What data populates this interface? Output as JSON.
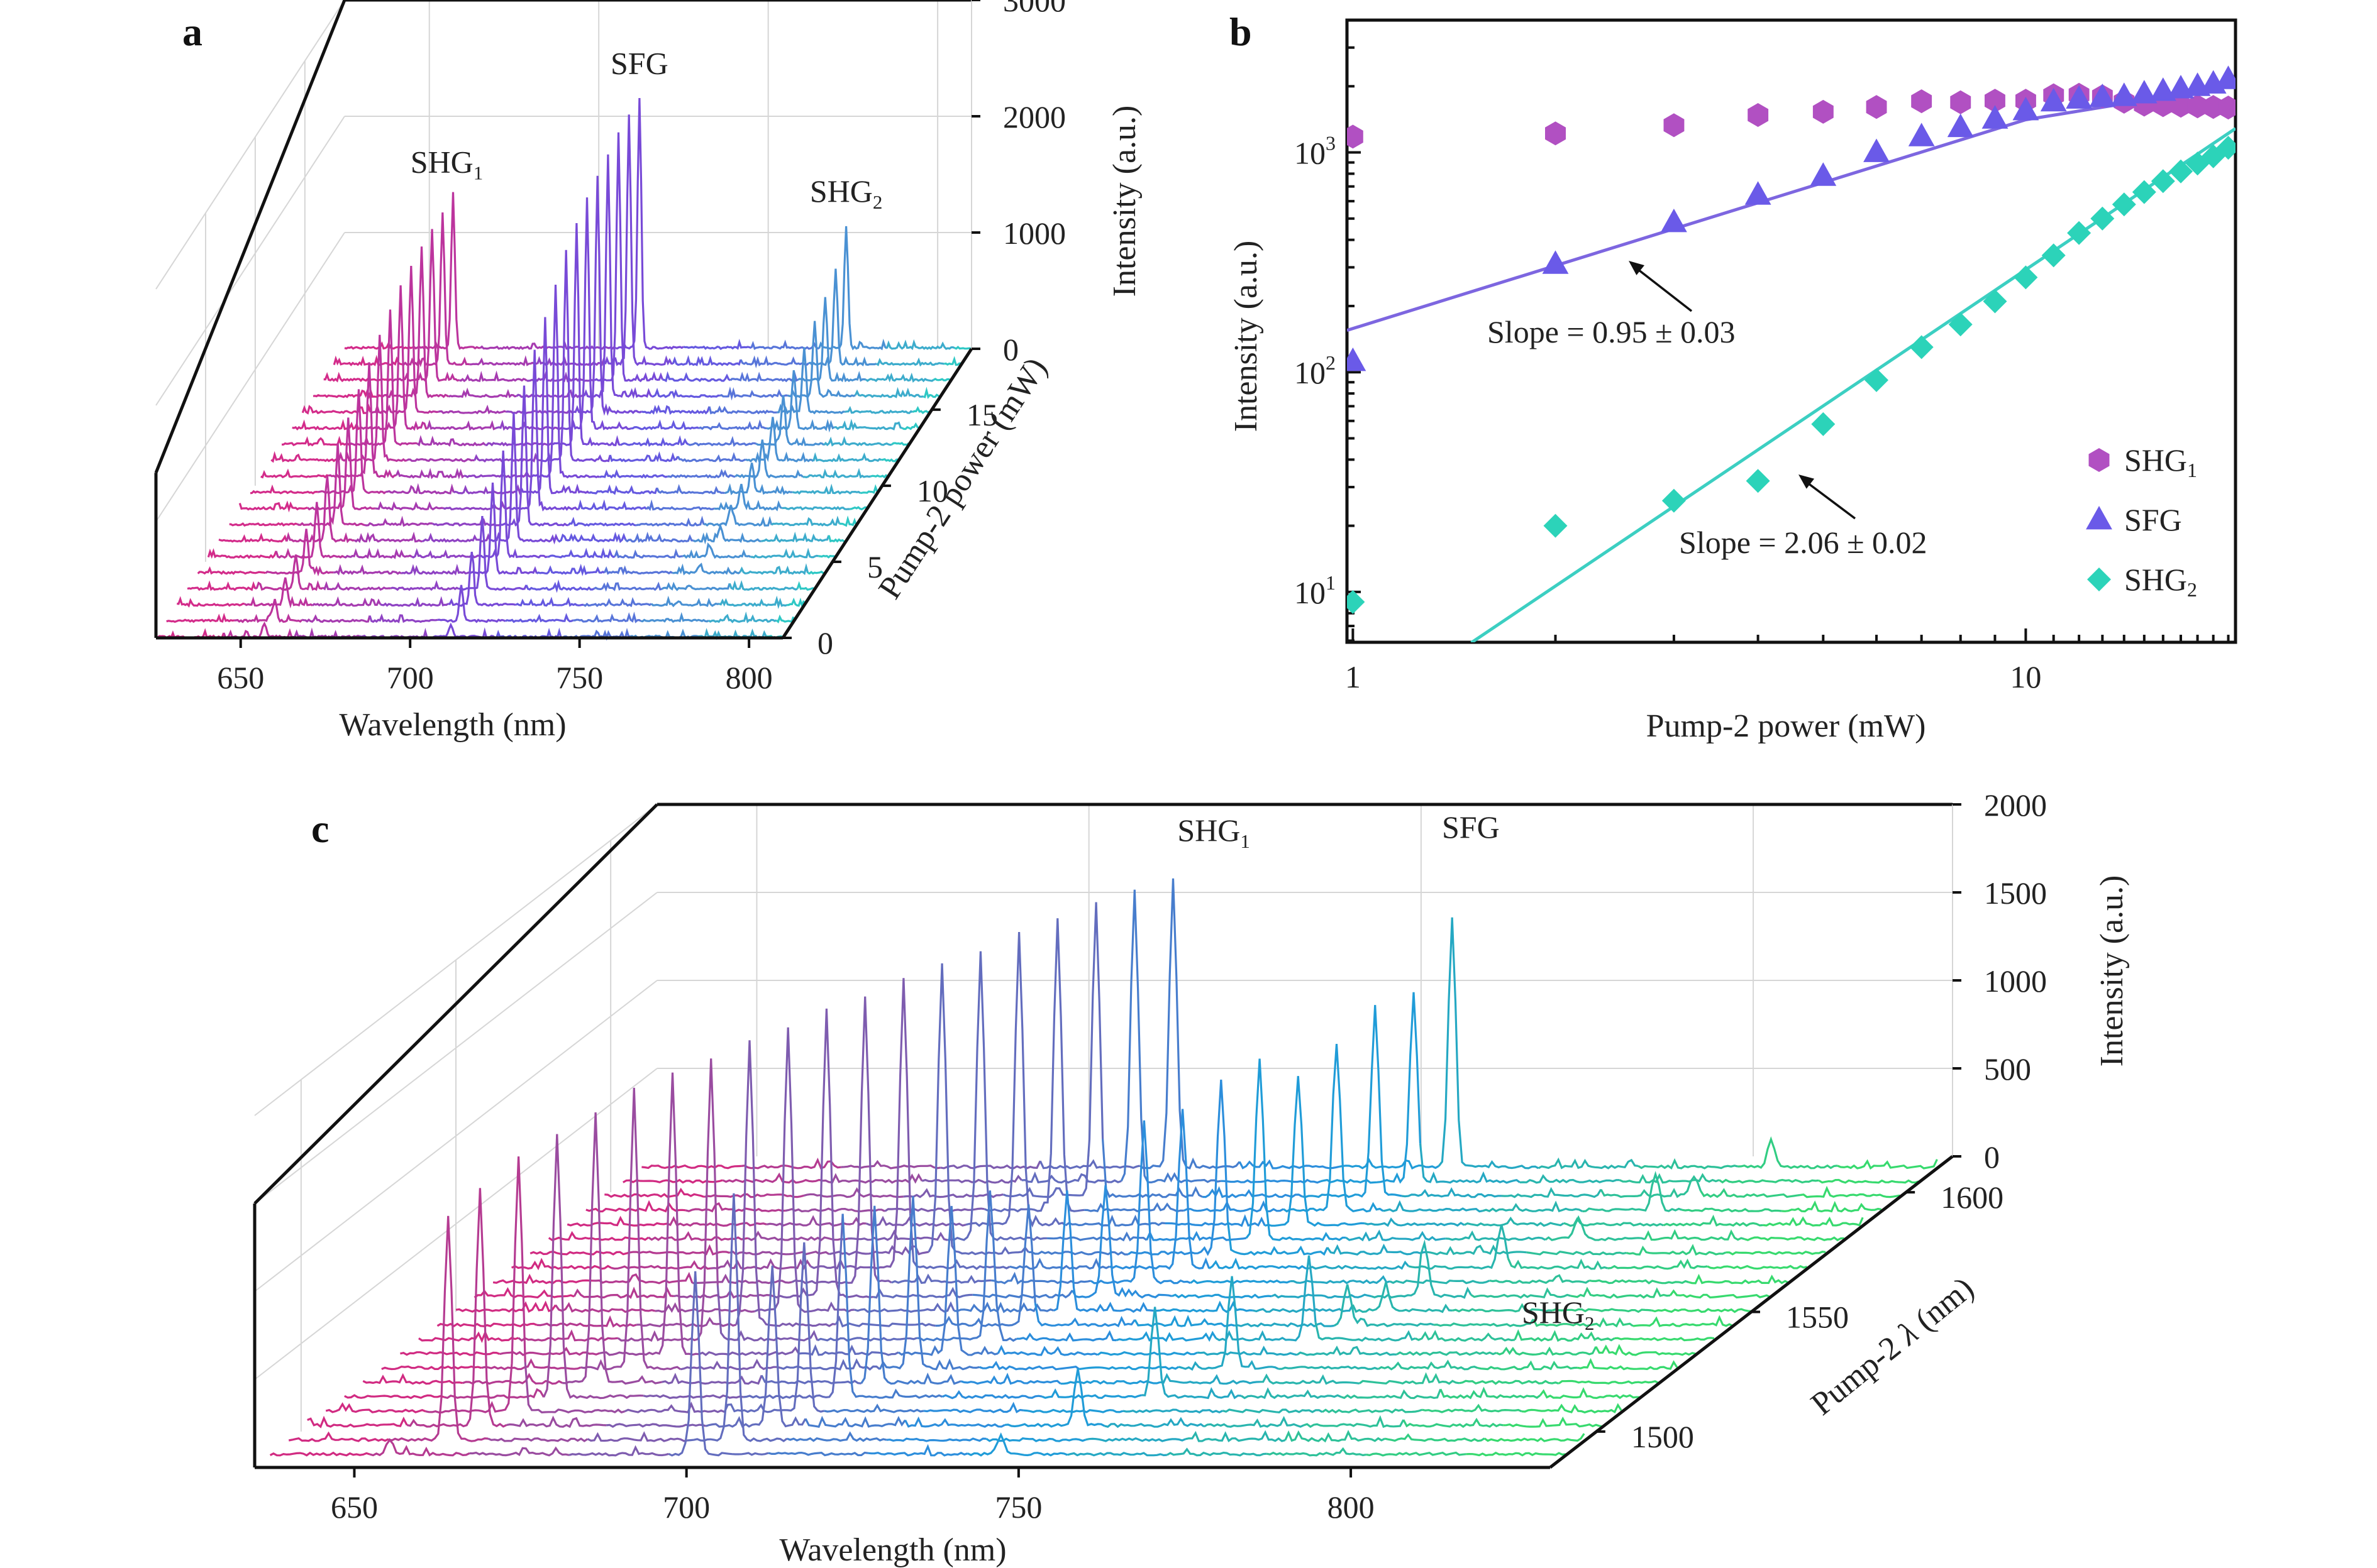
{
  "colors": {
    "a_SHG1": "#d32c8a",
    "a_SFG": "#6a4fe3",
    "a_SHG2": "#2ccfc3",
    "b_SHG1": "#b150c2",
    "b_SFG": "#6a5ae8",
    "b_SHG2": "#2cd3b9",
    "b_fit_SFG": "#7d66e0",
    "b_fit_SHG2": "#3ccfc2",
    "c_SHG1": "#d12b82",
    "c_SFG": "#1e96e3",
    "c_SHG2": "#3be659",
    "axis": "#111111",
    "grid": "#d6d6d6"
  },
  "chart_data": [
    {
      "panel": "a",
      "type": "line",
      "chart_kind": "3D waterfall spectra",
      "xlabel": "Wavelength (nm)",
      "xticks": [
        "650",
        "700",
        "750",
        "800"
      ],
      "xlim": [
        625,
        810
      ],
      "ylabel": "Pump-2 power (mW)",
      "yticks": [
        "0",
        "5",
        "10",
        "15"
      ],
      "ylim": [
        0,
        19
      ],
      "zlabel": "Intensity (a.u.)",
      "zticks": [
        "0",
        "1000",
        "2000",
        "3000"
      ],
      "zlim": [
        0,
        3000
      ],
      "peaks": [
        {
          "name": "SHG1",
          "label": "SHG",
          "sub": "1",
          "wavelength": 657,
          "amplitudes": [
            120,
            180,
            240,
            300,
            380,
            460,
            560,
            660,
            780,
            880,
            980,
            1080,
            1160,
            1220,
            1260,
            1280,
            1290,
            1300,
            1300
          ]
        },
        {
          "name": "SFG",
          "label": "SFG",
          "wavelength": 712,
          "amplitudes": [
            110,
            300,
            460,
            620,
            780,
            920,
            1060,
            1200,
            1360,
            1500,
            1650,
            1800,
            1900,
            1980,
            2040,
            2080,
            2120,
            2140,
            2150
          ]
        },
        {
          "name": "SHG2",
          "label": "SHG",
          "sub": "2",
          "wavelength": 773,
          "amplitudes": [
            9,
            15,
            22,
            28,
            58,
            90,
            130,
            170,
            210,
            260,
            310,
            370,
            430,
            500,
            560,
            640,
            720,
            820,
            1050
          ]
        }
      ]
    },
    {
      "panel": "b",
      "type": "scatter",
      "scale": "log-log",
      "xlabel": "Pump-2 power (mW)",
      "ylabel": "Intensity (a.u.)",
      "xlim": [
        0.98,
        20.5
      ],
      "ylim": [
        5.9,
        4000
      ],
      "xticks": [
        "1",
        "10"
      ],
      "yticks": [
        {
          "base": "10",
          "exp": "1"
        },
        {
          "base": "10",
          "exp": "2"
        },
        {
          "base": "10",
          "exp": "3"
        }
      ],
      "legend_position": "bottom-right",
      "series": [
        {
          "name": "SHG1",
          "label": "SHG",
          "sub": "1",
          "marker": "hexagon",
          "x": [
            1,
            2,
            3,
            4,
            5,
            6,
            7,
            8,
            9,
            10,
            11,
            12,
            13,
            14,
            15,
            16,
            17,
            18,
            19,
            20
          ],
          "y": [
            1180,
            1220,
            1330,
            1480,
            1530,
            1610,
            1710,
            1690,
            1720,
            1720,
            1820,
            1830,
            1800,
            1700,
            1650,
            1640,
            1630,
            1620,
            1610,
            1600
          ]
        },
        {
          "name": "SFG",
          "label": "SFG",
          "marker": "triangle",
          "x": [
            1,
            2,
            3,
            4,
            5,
            6,
            7,
            8,
            9,
            10,
            11,
            12,
            13,
            14,
            15,
            16,
            17,
            18,
            19,
            20
          ],
          "y": [
            112,
            310,
            480,
            640,
            780,
            1000,
            1180,
            1300,
            1420,
            1550,
            1700,
            1750,
            1780,
            1800,
            1850,
            1900,
            1950,
            2000,
            2050,
            2150
          ]
        },
        {
          "name": "SHG2",
          "label": "SHG",
          "sub": "2",
          "marker": "diamond",
          "x": [
            1,
            2,
            3,
            4,
            5,
            6,
            7,
            8,
            9,
            10,
            11,
            12,
            13,
            14,
            15,
            16,
            17,
            18,
            19,
            20
          ],
          "y": [
            9,
            20,
            26,
            32,
            58,
            92,
            130,
            165,
            210,
            270,
            340,
            430,
            500,
            580,
            660,
            740,
            820,
            890,
            960,
            1050
          ]
        }
      ],
      "fits": [
        {
          "series": "SFG",
          "label": "Slope = 0.95 ± 0.03",
          "slope": 0.95,
          "intercept_at_1": 158,
          "x_range": [
            0.98,
            10
          ]
        },
        {
          "series": "SFG_upper",
          "slope": 0.5,
          "x_range": [
            10,
            20.5
          ]
        },
        {
          "series": "SHG2",
          "label": "Slope = 2.06 ± 0.02",
          "slope": 2.06,
          "intercept_at_1": 2.55,
          "x_range": [
            1.5,
            20.5
          ]
        }
      ]
    },
    {
      "panel": "c",
      "type": "line",
      "chart_kind": "3D waterfall spectra",
      "xlabel": "Wavelength (nm)",
      "xticks": [
        "650",
        "700",
        "750",
        "800"
      ],
      "xlim": [
        635,
        830
      ],
      "ylabel": "Pump-2 λ (nm)",
      "ylabel_parts": [
        "Pump-2 ",
        "λ",
        " (nm)"
      ],
      "yticks": [
        "1500",
        "1550",
        "1600"
      ],
      "ylim": [
        1485,
        1615
      ],
      "zlabel": "Intensity (a.u.)",
      "zticks": [
        "0",
        "500",
        "1000",
        "1500",
        "2000"
      ],
      "zlim": [
        0,
        2000
      ],
      "pump_wavelengths": [
        1490,
        1496,
        1502,
        1508,
        1514,
        1520,
        1526,
        1532,
        1538,
        1544,
        1550,
        1556,
        1562,
        1568,
        1574,
        1580,
        1586,
        1592,
        1598,
        1604,
        1610
      ],
      "peak_labels": [
        {
          "name": "SHG1",
          "label": "SHG",
          "sub": "1"
        },
        {
          "name": "SFG",
          "label": "SFG"
        },
        {
          "name": "SHG2",
          "label": "SHG",
          "sub": "2"
        }
      ],
      "spectra_peaks": [
        {
          "shg1": 653,
          "shg1_amp": 80,
          "sfg": 699,
          "sfg_amp": 1010,
          "shg2": 745,
          "shg2_amp": 110
        },
        {
          "shg1": 659,
          "shg1_amp": 1270,
          "sfg": 702,
          "sfg_amp": 1400,
          "shg2": 748,
          "shg2_amp": 0
        },
        {
          "shg1": 661,
          "shg1_amp": 1350,
          "sfg": 705,
          "sfg_amp": 900,
          "shg2": 751,
          "shg2_amp": 320
        },
        {
          "shg1": 664,
          "shg1_amp": 1450,
          "sfg": 707,
          "sfg_amp": 960,
          "shg2": 754,
          "shg2_amp": 0
        },
        {
          "shg1": 667,
          "shg1_amp": 1500,
          "sfg": 710,
          "sfg_amp": 1040,
          "shg2": 757,
          "shg2_amp": 510
        },
        {
          "shg1": 670,
          "shg1_amp": 1540,
          "sfg": 712,
          "sfg_amp": 1000,
          "shg2": 760,
          "shg2_amp": 0
        },
        {
          "shg1": 673,
          "shg1_amp": 1560,
          "sfg": 715,
          "sfg_amp": 980,
          "shg2": 763,
          "shg2_amp": 520
        },
        {
          "shg1": 676,
          "shg1_amp": 1590,
          "sfg": 718,
          "sfg_amp": 840,
          "shg2": 766,
          "shg2_amp": 0
        },
        {
          "shg1": 679,
          "shg1_amp": 1600,
          "sfg": 721,
          "sfg_amp": 850,
          "shg2": 769,
          "shg2_amp": 480
        },
        {
          "shg1": 682,
          "shg1_amp": 1620,
          "sfg": 724,
          "sfg_amp": 690,
          "shg2": 772,
          "shg2_amp": 230
        },
        {
          "shg1": 685,
          "shg1_amp": 1610,
          "sfg": 727,
          "sfg_amp": 680,
          "shg2": 775,
          "shg2_amp": 120
        },
        {
          "shg1": 688,
          "shg1_amp": 1640,
          "sfg": 730,
          "sfg_amp": 630,
          "shg2": 778,
          "shg2_amp": 300
        },
        {
          "shg1": 691,
          "shg1_amp": 1620,
          "sfg": 733,
          "sfg_amp": 920,
          "shg2": 781,
          "shg2_amp": 0
        },
        {
          "shg1": 694,
          "shg1_amp": 1640,
          "sfg": 736,
          "sfg_amp": 900,
          "shg2": 784,
          "shg2_amp": 250
        },
        {
          "shg1": 697,
          "shg1_amp": 1650,
          "sfg": 739,
          "sfg_amp": 990,
          "shg2": 787,
          "shg2_amp": 0
        },
        {
          "shg1": 700,
          "shg1_amp": 1640,
          "sfg": 742,
          "sfg_amp": 1030,
          "shg2": 790,
          "shg2_amp": 120
        },
        {
          "shg1": 703,
          "shg1_amp": 1660,
          "sfg": 745,
          "sfg_amp": 850,
          "shg2": 793,
          "shg2_amp": 0
        },
        {
          "shg1": 706,
          "shg1_amp": 1650,
          "sfg": 748,
          "sfg_amp": 950,
          "shg2": 796,
          "shg2_amp": 210
        },
        {
          "shg1": 709,
          "shg1_amp": 1660,
          "sfg": 751,
          "sfg_amp": 1080,
          "shg2": 799,
          "shg2_amp": 110
        },
        {
          "shg1": 712,
          "shg1_amp": 1650,
          "sfg": 754,
          "sfg_amp": 1080,
          "shg2": 802,
          "shg2_amp": 0
        },
        {
          "shg1": 715,
          "shg1_amp": 1640,
          "sfg": 757,
          "sfg_amp": 1420,
          "shg2": 805,
          "shg2_amp": 150
        }
      ]
    }
  ]
}
